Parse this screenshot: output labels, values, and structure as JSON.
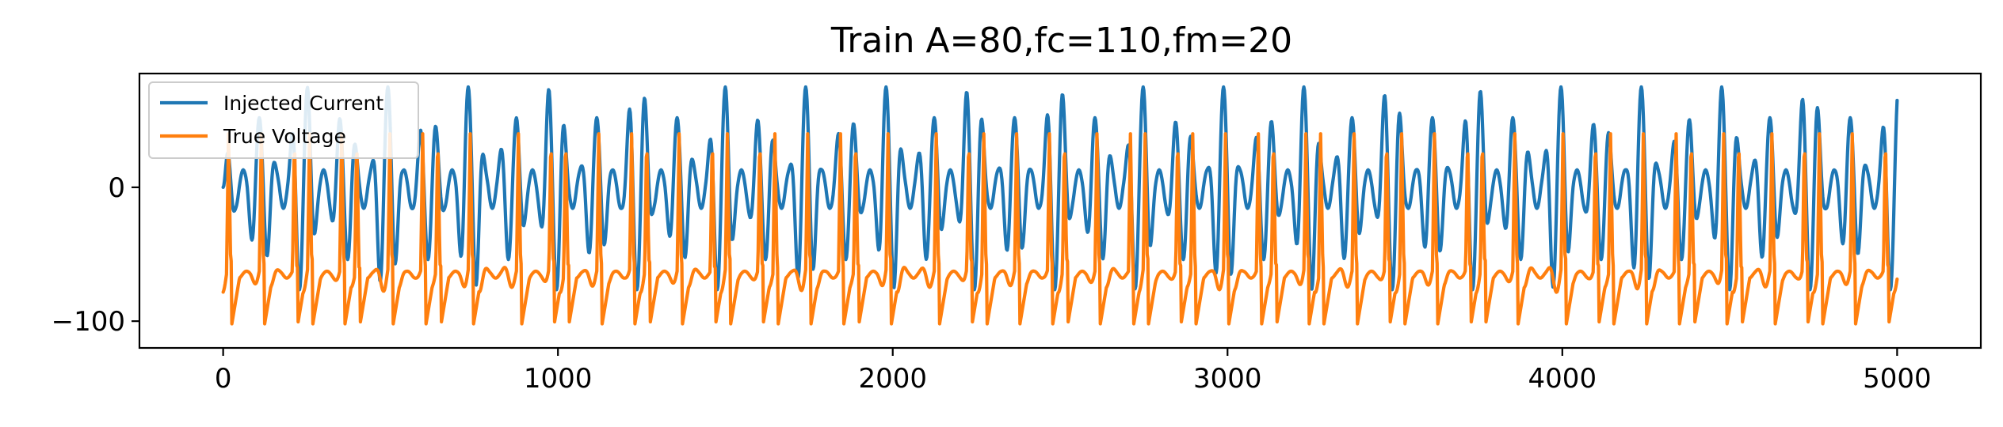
{
  "chart_data": {
    "type": "line",
    "title": "Train A=80,fc=110,fm=20",
    "xlabel": "",
    "ylabel": "",
    "xlim": [
      -250,
      5250
    ],
    "ylim": [
      -120,
      85
    ],
    "xticks": [
      0,
      1000,
      2000,
      3000,
      4000,
      5000
    ],
    "xtick_labels": [
      "0",
      "1000",
      "2000",
      "3000",
      "4000",
      "5000"
    ],
    "yticks": [
      0,
      -100
    ],
    "ytick_labels": [
      "0",
      "−100"
    ],
    "grid": false,
    "legend_position": "top-left",
    "series": [
      {
        "name": "Injected Current",
        "color": "#1f77b4",
        "model": "envelope-modulated sinusoid",
        "x_range": [
          0,
          5000
        ],
        "envelope_peaks": [
          75,
          13,
          52,
          13,
          75,
          13,
          52,
          13
        ],
        "troughs_approx": [
          -80,
          -33,
          -65,
          -33
        ],
        "carrier_period_approx": 48
      },
      {
        "name": "True Voltage",
        "color": "#ff7f0e",
        "model": "spike train",
        "x_range": [
          0,
          5000
        ],
        "spike_peak_approx": 40,
        "rest_level_approx": -65,
        "trough_min_approx": -110
      }
    ]
  }
}
